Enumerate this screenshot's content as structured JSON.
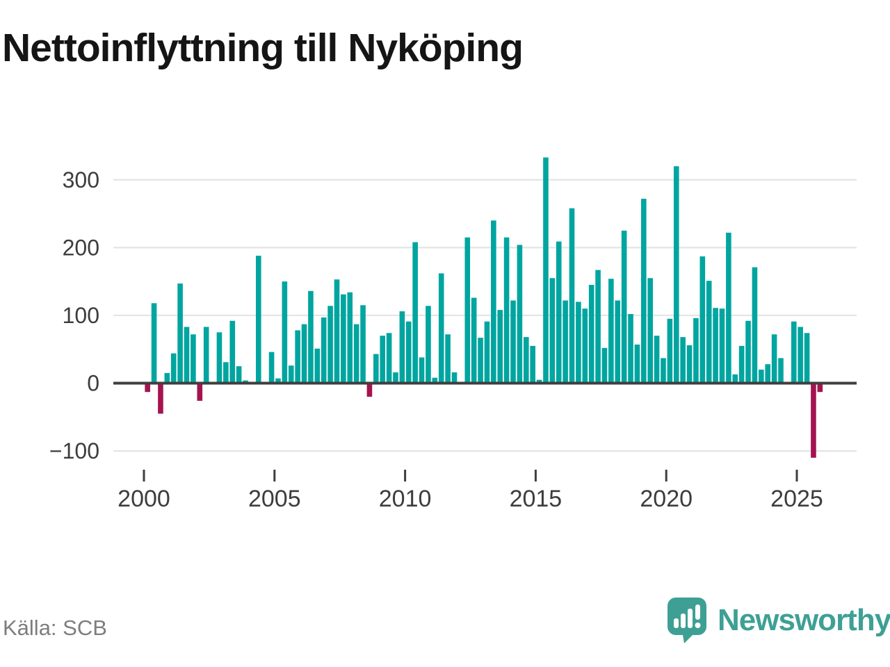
{
  "title": "Nettoinflyttning till Nyköping",
  "source": "Källa: SCB",
  "branding": {
    "logo_text": "Newsworthy",
    "logo_icon": "bar-chart-speech-bubble-icon"
  },
  "colors": {
    "positive_bar": "#00A5A0",
    "negative_bar": "#A51350",
    "grid": "#E4E4E4",
    "axis": "#3F3F3F",
    "tick_text": "#3D3D3D",
    "source_text": "#7D7D7D",
    "brand": "#3EA094",
    "background": "#FFFFFF"
  },
  "chart_data": {
    "type": "bar",
    "title": "Nettoinflyttning till Nyköping",
    "frequency": "quarterly",
    "start_year": 2000,
    "start_quarter": "2000Q1",
    "end_quarter": "2025Q4",
    "values": [
      -13,
      118,
      -45,
      15,
      44,
      147,
      83,
      72,
      -26,
      83,
      0,
      75,
      31,
      92,
      25,
      4,
      0,
      188,
      0,
      46,
      7,
      150,
      26,
      78,
      87,
      136,
      51,
      97,
      114,
      153,
      131,
      134,
      87,
      115,
      -20,
      43,
      70,
      74,
      16,
      106,
      91,
      208,
      38,
      114,
      8,
      162,
      72,
      16,
      0,
      215,
      126,
      67,
      91,
      240,
      108,
      215,
      122,
      204,
      68,
      55,
      5,
      333,
      155,
      209,
      122,
      258,
      120,
      110,
      145,
      167,
      52,
      154,
      122,
      225,
      102,
      57,
      272,
      155,
      70,
      37,
      95,
      320,
      68,
      56,
      96,
      187,
      151,
      111,
      110,
      222,
      13,
      55,
      92,
      171,
      20,
      28,
      72,
      37,
      0,
      91,
      83,
      74,
      -110,
      -13
    ],
    "x_tick_labels": [
      "2000",
      "2005",
      "2010",
      "2015",
      "2020",
      "2025"
    ],
    "y_tick_labels": [
      "300",
      "200",
      "100",
      "0",
      "−100"
    ],
    "y_tick_values": [
      300,
      200,
      100,
      0,
      -100
    ],
    "ylim": [
      -130,
      350
    ],
    "grid": true,
    "legend": "none",
    "xlabel": "",
    "ylabel": ""
  }
}
